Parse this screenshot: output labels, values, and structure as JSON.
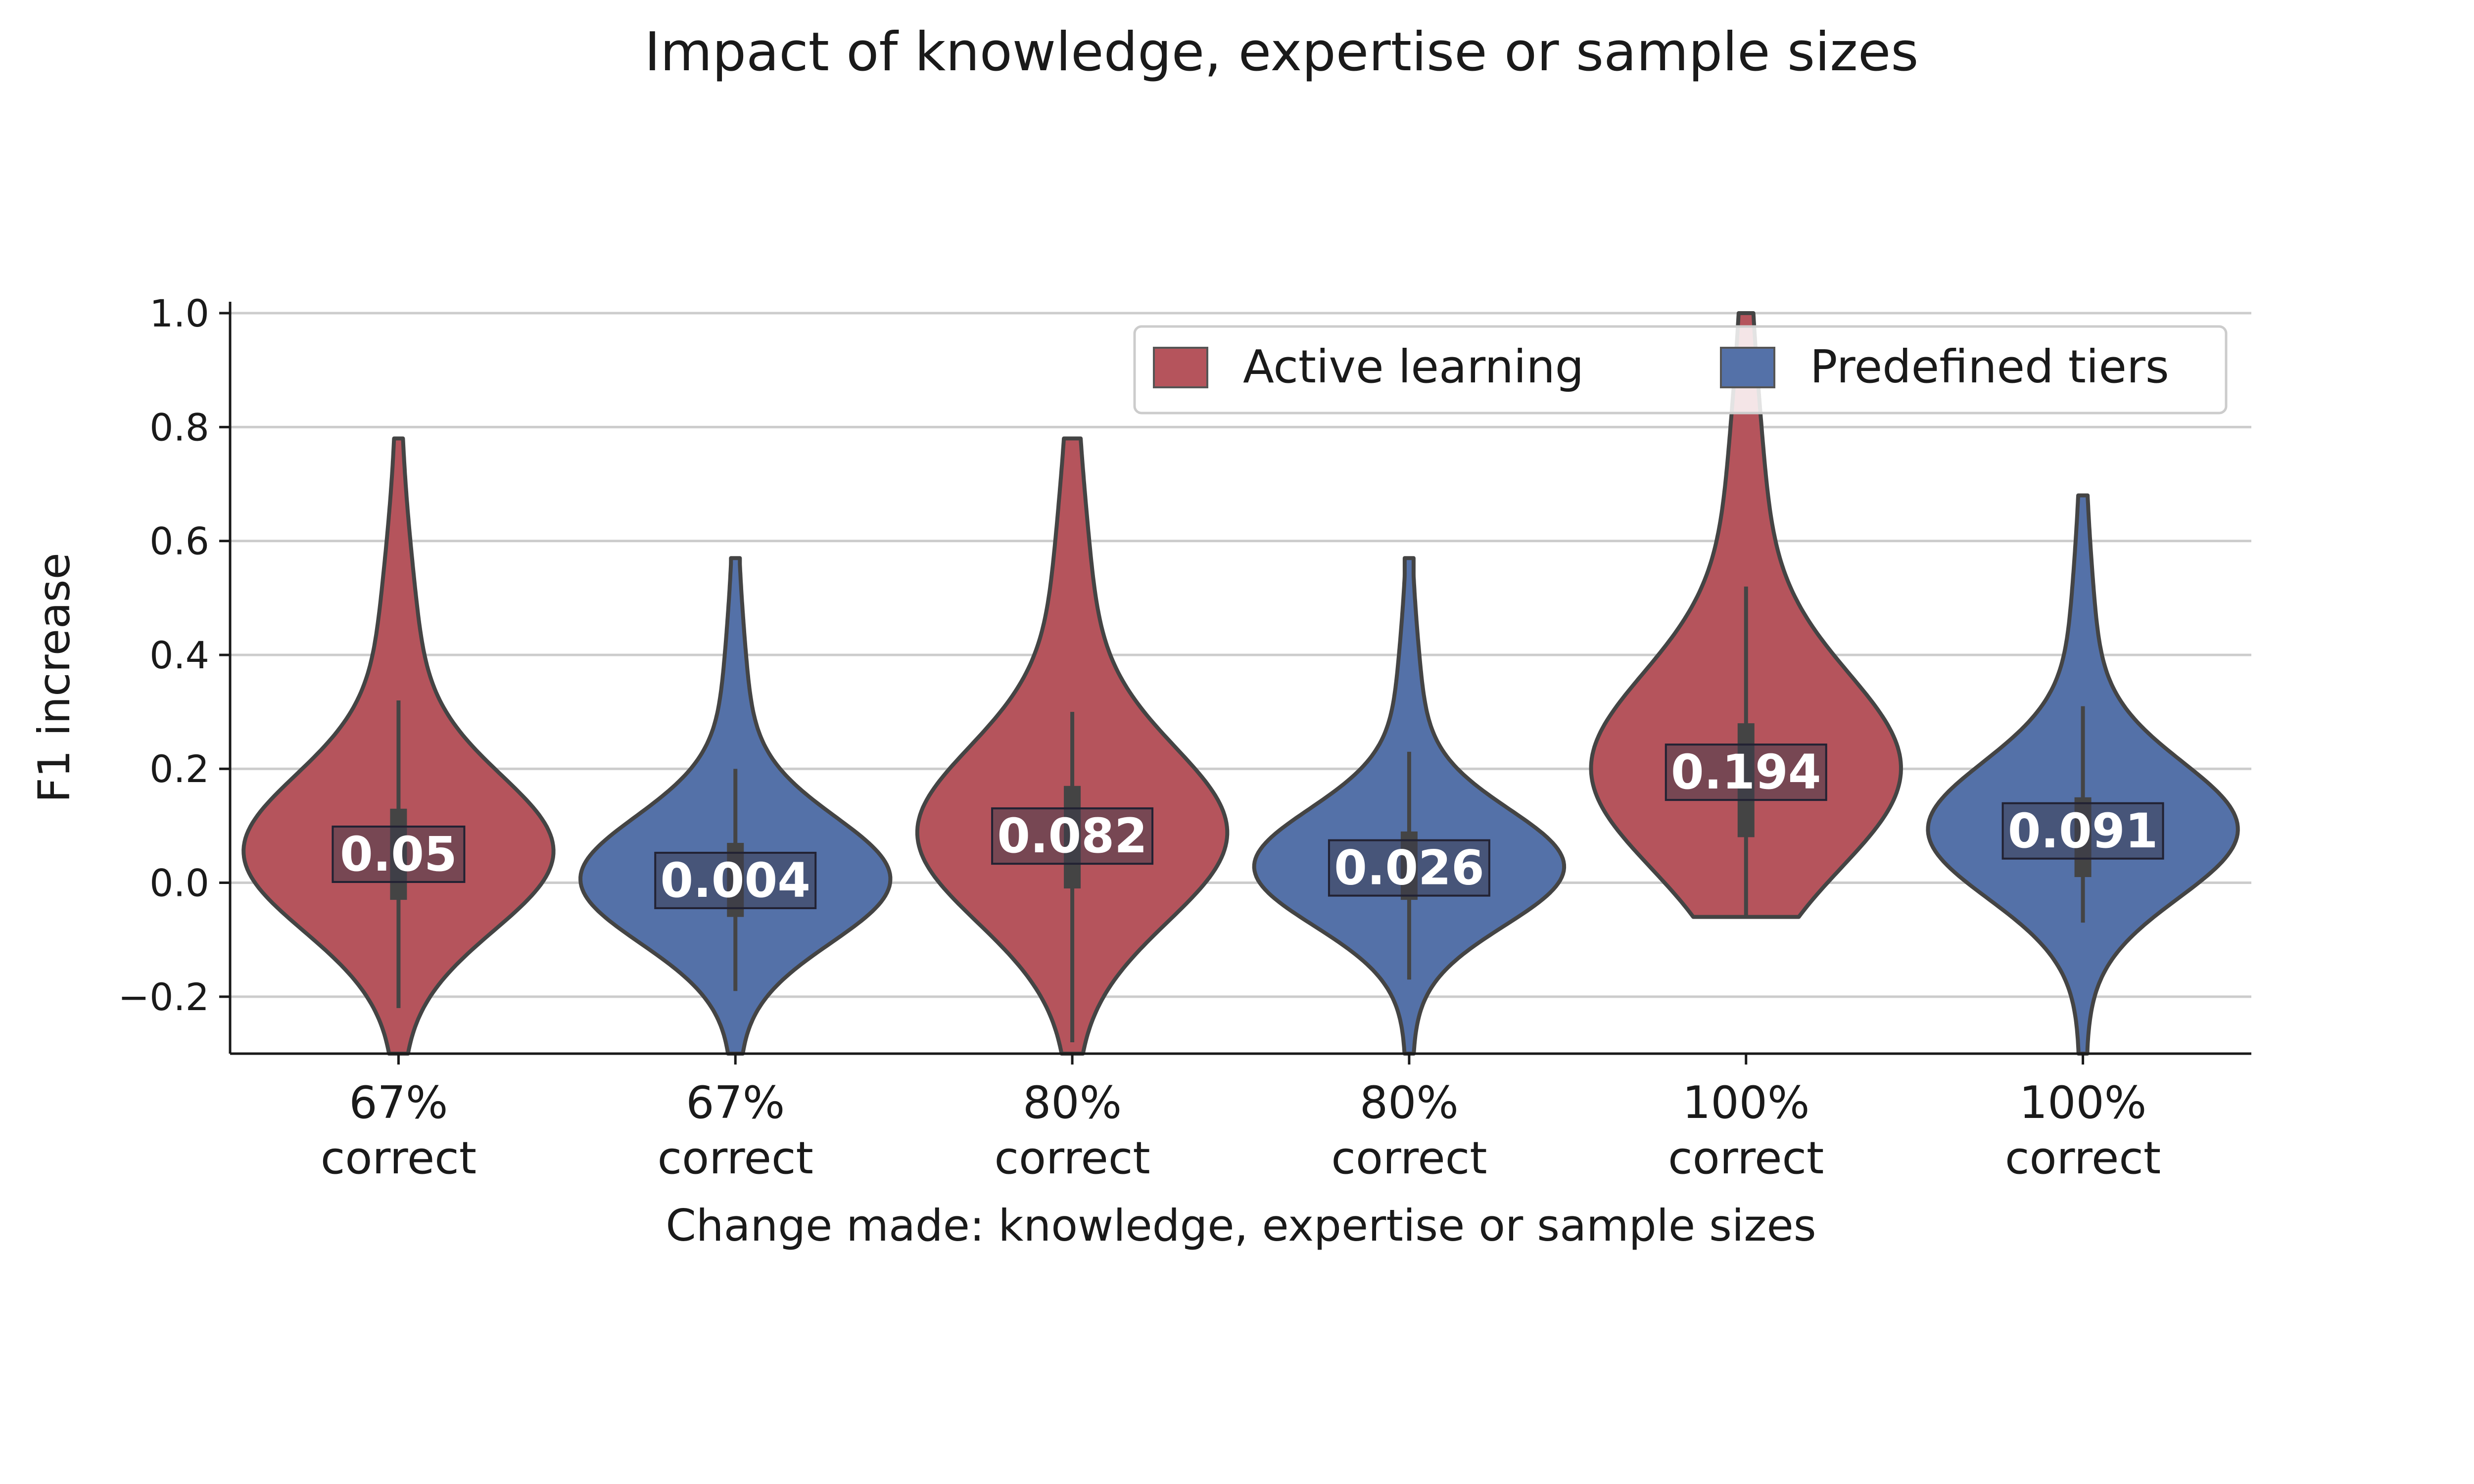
{
  "colors": {
    "active_learning": "#b5545c",
    "predefined_tiers": "#5471a8",
    "outline": "#444444",
    "grid": "#cccccc",
    "label_box": "#3a3a4a"
  },
  "chart_data": {
    "type": "violin",
    "title": "Impact of knowledge, expertise or sample sizes",
    "xlabel": "Change made: knowledge, expertise or sample sizes",
    "ylabel": "F1 increase",
    "ylim": [
      -0.3,
      1.02
    ],
    "yticks": [
      -0.2,
      0.0,
      0.2,
      0.4,
      0.6,
      0.8,
      1.0
    ],
    "ytick_labels": [
      "−0.2",
      "0.0",
      "0.2",
      "0.4",
      "0.6",
      "0.8",
      "1.0"
    ],
    "grid": "y",
    "legend": {
      "placement": "top-right",
      "entries": [
        {
          "name": "Active learning",
          "color_key": "active_learning"
        },
        {
          "name": "Predefined tiers",
          "color_key": "predefined_tiers"
        }
      ]
    },
    "categories": [
      {
        "line1": "67%",
        "line2": "correct",
        "series": "Active learning",
        "median": 0.05,
        "label": "0.05",
        "q1": -0.03,
        "q3": 0.13,
        "whisker_low": -0.22,
        "whisker_high": 0.32,
        "min": -0.3,
        "max": 0.78
      },
      {
        "line1": "67%",
        "line2": "correct",
        "series": "Predefined tiers",
        "median": 0.004,
        "label": "0.004",
        "q1": -0.06,
        "q3": 0.07,
        "whisker_low": -0.19,
        "whisker_high": 0.2,
        "min": -0.3,
        "max": 0.57
      },
      {
        "line1": "80%",
        "line2": "correct",
        "series": "Active learning",
        "median": 0.082,
        "label": "0.082",
        "q1": -0.01,
        "q3": 0.17,
        "whisker_low": -0.28,
        "whisker_high": 0.3,
        "min": -0.3,
        "max": 0.78
      },
      {
        "line1": "80%",
        "line2": "correct",
        "series": "Predefined tiers",
        "median": 0.026,
        "label": "0.026",
        "q1": -0.03,
        "q3": 0.09,
        "whisker_low": -0.17,
        "whisker_high": 0.23,
        "min": -0.3,
        "max": 0.57
      },
      {
        "line1": "100%",
        "line2": "correct",
        "series": "Active learning",
        "median": 0.194,
        "label": "0.194",
        "q1": 0.08,
        "q3": 0.28,
        "whisker_low": -0.06,
        "whisker_high": 0.52,
        "min": -0.06,
        "max": 1.0
      },
      {
        "line1": "100%",
        "line2": "correct",
        "series": "Predefined tiers",
        "median": 0.091,
        "label": "0.091",
        "q1": 0.01,
        "q3": 0.15,
        "whisker_low": -0.07,
        "whisker_high": 0.31,
        "min": -0.3,
        "max": 0.68
      }
    ]
  }
}
